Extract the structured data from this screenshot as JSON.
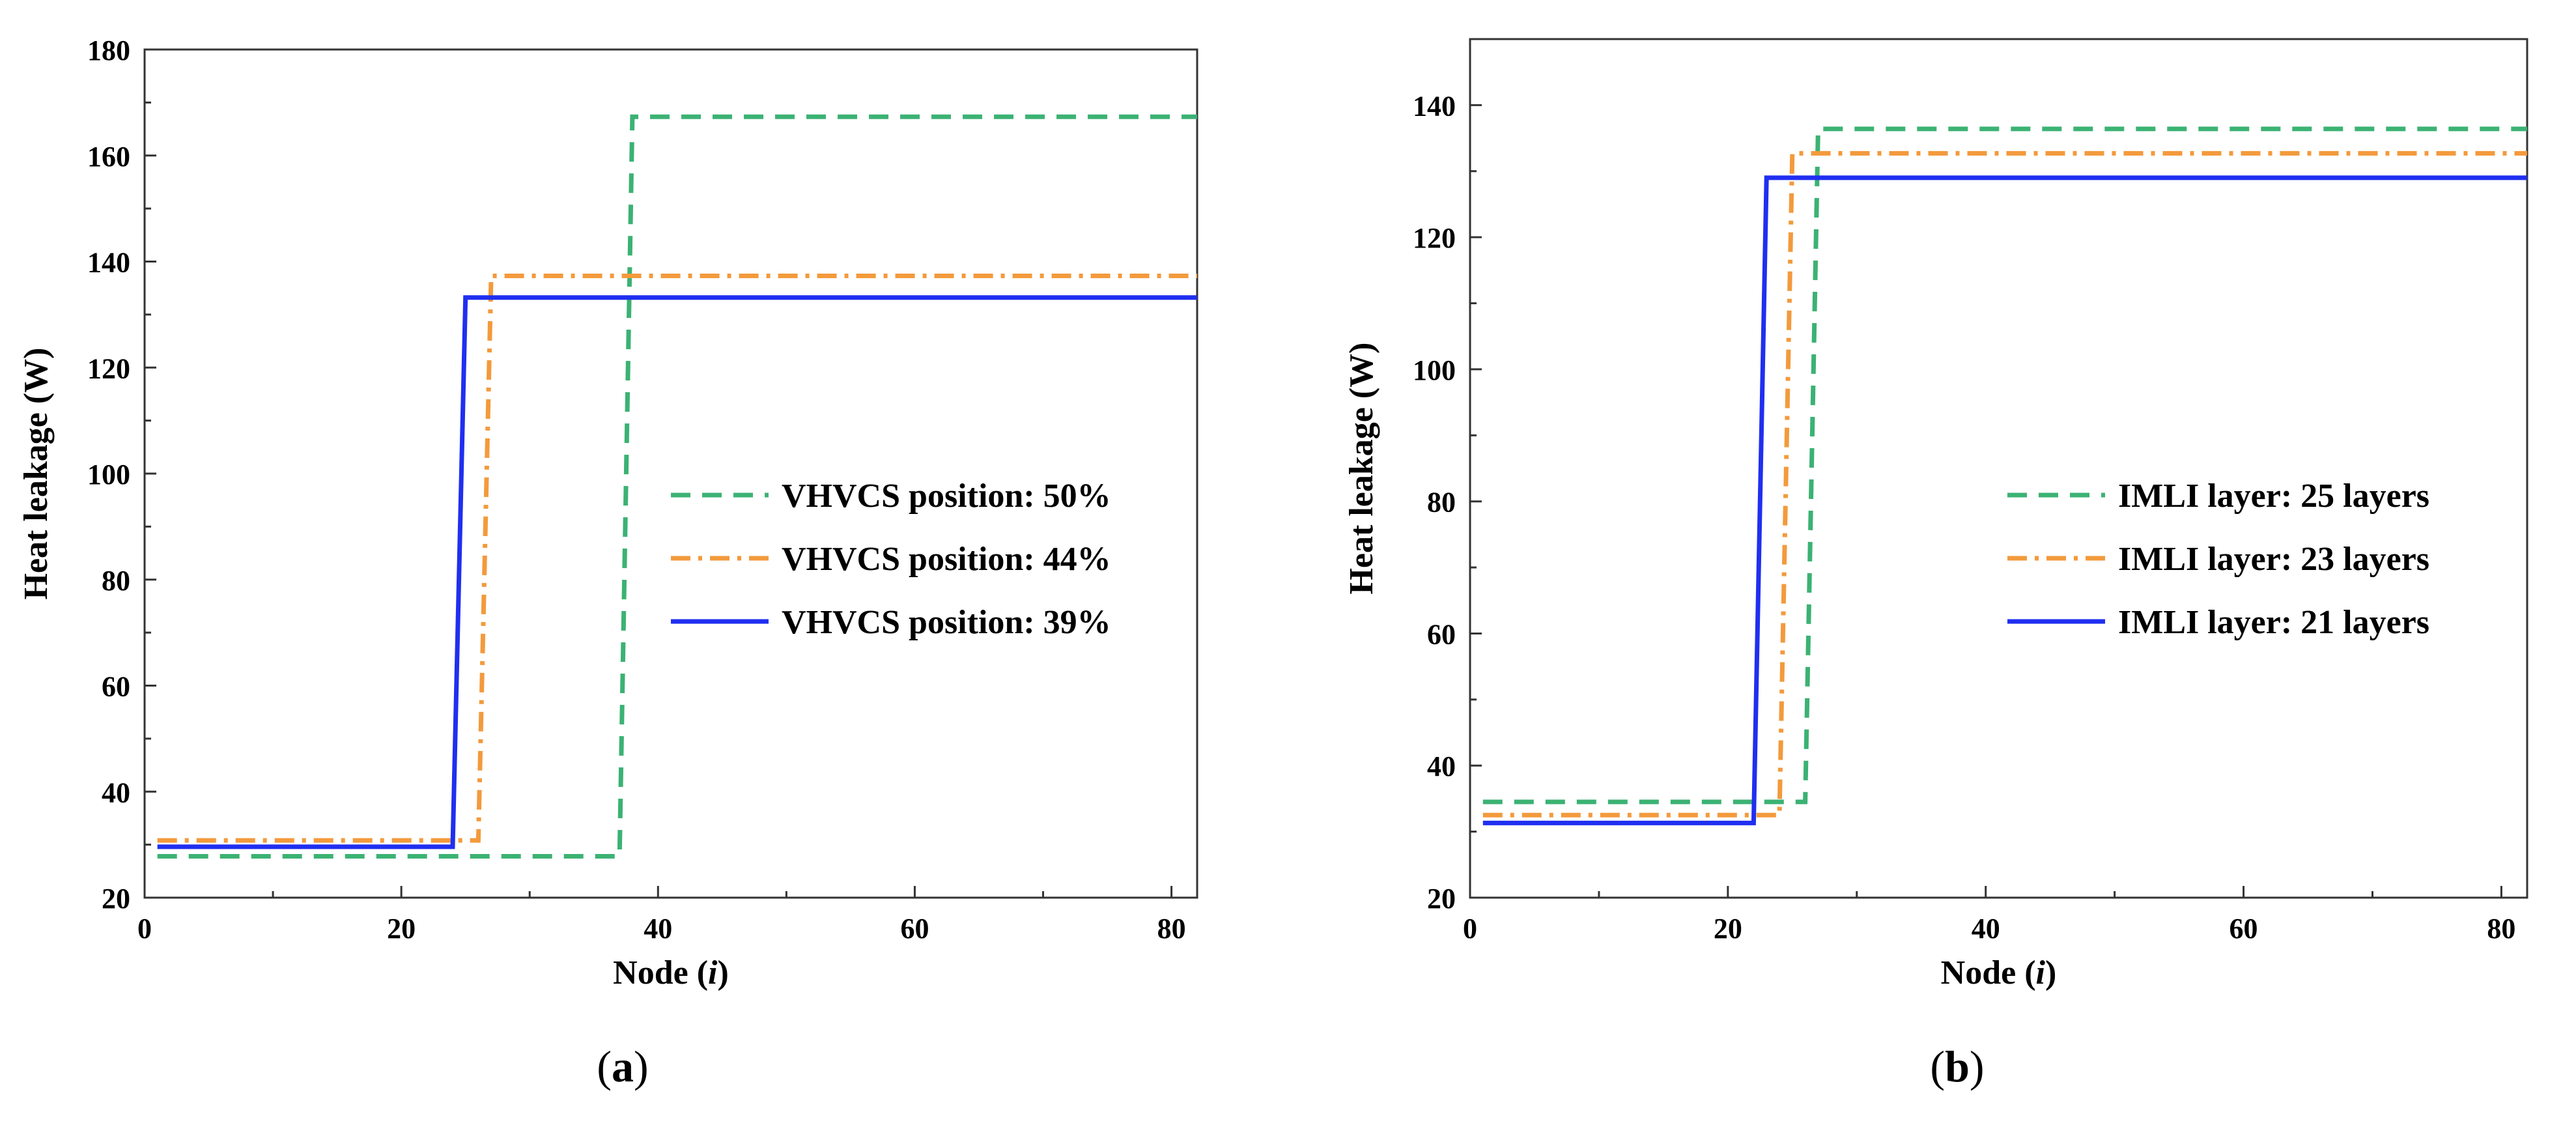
{
  "chart_data": [
    {
      "type": "line",
      "panel_label": "(a)",
      "xlabel": "Node (i)",
      "ylabel": "Heat leakage (W)",
      "xlim": [
        0,
        82
      ],
      "ylim": [
        20,
        180
      ],
      "x_ticks": [
        0,
        20,
        40,
        60,
        80
      ],
      "y_ticks": [
        20,
        40,
        60,
        80,
        100,
        120,
        140,
        160,
        180
      ],
      "legend_position": "center-right",
      "grid": false,
      "series": [
        {
          "name": "VHVCS position: 50%",
          "color": "#3bb273",
          "line_style": "dashed",
          "x": [
            1,
            37,
            38,
            82
          ],
          "y": [
            27.8,
            27.8,
            167.3,
            167.3
          ]
        },
        {
          "name": "VHVCS position: 44%",
          "color": "#f39a3c",
          "line_style": "dash-dot",
          "x": [
            1,
            26,
            27,
            82
          ],
          "y": [
            30.8,
            30.8,
            137.3,
            137.3
          ]
        },
        {
          "name": "VHVCS position: 39%",
          "color": "#1f2ff0",
          "line_style": "solid",
          "x": [
            1,
            24,
            25,
            82
          ],
          "y": [
            29.6,
            29.6,
            133.2,
            133.2
          ]
        }
      ]
    },
    {
      "type": "line",
      "panel_label": "(b)",
      "xlabel": "Node (i)",
      "ylabel": "Heat leakage (W)",
      "xlim": [
        0,
        82
      ],
      "ylim": [
        20,
        150
      ],
      "x_ticks": [
        0,
        20,
        40,
        60,
        80
      ],
      "y_ticks": [
        20,
        40,
        60,
        80,
        100,
        120,
        140
      ],
      "legend_position": "center-right",
      "grid": false,
      "series": [
        {
          "name": "IMLI layer: 25 layers",
          "color": "#3bb273",
          "line_style": "dashed",
          "x": [
            1,
            26,
            27,
            82
          ],
          "y": [
            34.5,
            34.5,
            136.4,
            136.4
          ]
        },
        {
          "name": "IMLI layer: 23 layers",
          "color": "#f39a3c",
          "line_style": "dash-dot",
          "x": [
            1,
            24,
            25,
            82
          ],
          "y": [
            32.5,
            32.5,
            132.7,
            132.7
          ]
        },
        {
          "name": "IMLI layer: 21 layers",
          "color": "#1f2ff0",
          "line_style": "solid",
          "x": [
            1,
            22,
            23,
            82
          ],
          "y": [
            31.3,
            31.3,
            129.0,
            129.0
          ]
        }
      ]
    }
  ]
}
